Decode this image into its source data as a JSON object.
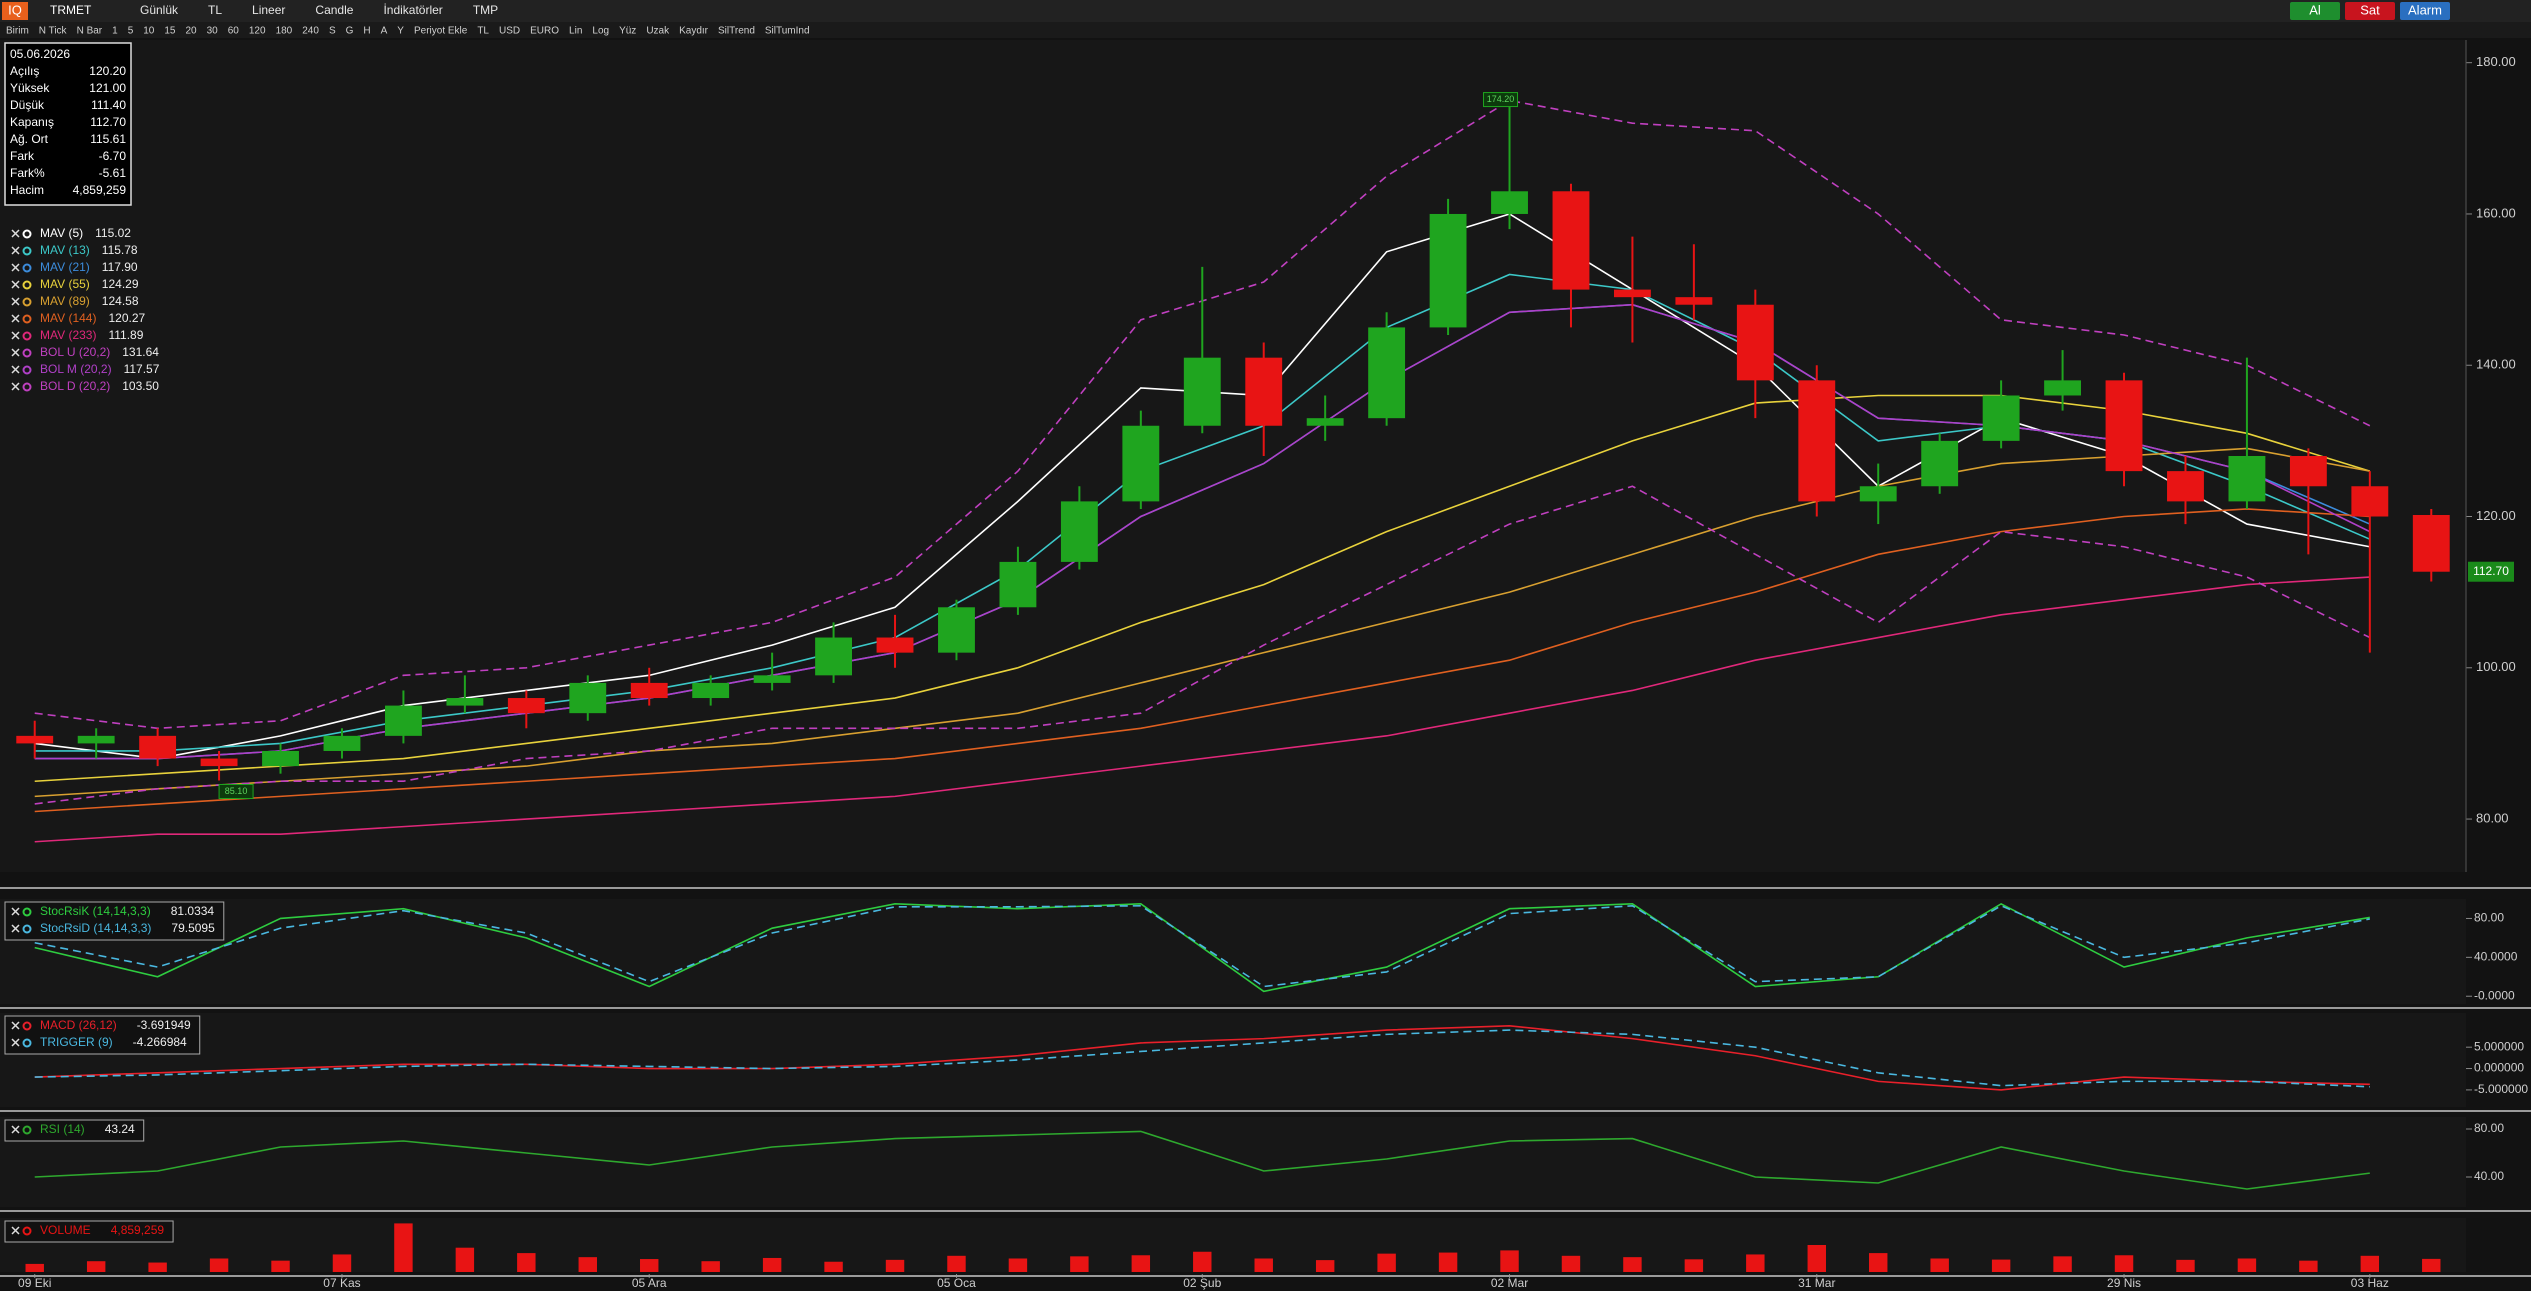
{
  "toolbar": {
    "logo": "IQ",
    "symbol": "TRMET",
    "menu": [
      "Günlük",
      "TL",
      "Lineer",
      "Candle",
      "İndikatörler",
      "TMP"
    ],
    "options": [
      "Birim",
      "N Tick",
      "N Bar",
      "1",
      "5",
      "10",
      "15",
      "20",
      "30",
      "60",
      "120",
      "180",
      "240",
      "S",
      "G",
      "H",
      "A",
      "Y",
      "Periyot Ekle",
      "TL",
      "USD",
      "EURO",
      "Lin",
      "Log",
      "Yüz",
      "Uzak",
      "Kaydır",
      "SilTrend",
      "SilTumInd"
    ],
    "buttons": [
      {
        "label": "Al",
        "color": "#1e8e2e"
      },
      {
        "label": "Sat",
        "color": "#c8141e"
      },
      {
        "label": "Alarm",
        "color": "#2a6fc0"
      }
    ]
  },
  "info": {
    "date": "05.06.2026",
    "rows": [
      [
        "Açılış",
        "120.20"
      ],
      [
        "Yüksek",
        "121.00"
      ],
      [
        "Düşük",
        "111.40"
      ],
      [
        "Kapanış",
        "112.70"
      ],
      [
        "Ağ. Ort",
        "115.61"
      ],
      [
        "Fark",
        "-6.70"
      ],
      [
        "Fark%",
        "-5.61"
      ],
      [
        "Hacim",
        "4,859,259"
      ]
    ]
  },
  "main": {
    "type": "candlestick",
    "ylim": [
      73,
      183
    ],
    "yticks": [
      {
        "value": 80,
        "label": "80.00"
      },
      {
        "value": 100,
        "label": "100.00"
      },
      {
        "value": 120,
        "label": "120.00"
      },
      {
        "value": 140,
        "label": "140.00"
      },
      {
        "value": 160,
        "label": "160.00"
      },
      {
        "value": 180,
        "label": "180.00"
      }
    ],
    "up_color": "#1fa51f",
    "down_color": "#e81414",
    "dates": [
      "09 Eki",
      null,
      null,
      null,
      null,
      "07 Kas",
      null,
      null,
      null,
      null,
      "05 Ara",
      null,
      null,
      null,
      null,
      "05 Oca",
      null,
      null,
      null,
      "02 Şub",
      null,
      null,
      null,
      null,
      "02 Mar",
      null,
      null,
      null,
      null,
      "31 Mar",
      null,
      null,
      null,
      null,
      "29 Nis",
      null,
      null,
      null,
      "03 Haz",
      null
    ],
    "candles": [
      [
        91,
        93,
        88,
        90
      ],
      [
        90,
        92,
        88,
        91
      ],
      [
        91,
        92,
        87,
        88
      ],
      [
        88,
        89,
        85.1,
        87
      ],
      [
        87,
        90,
        86,
        89
      ],
      [
        89,
        92,
        88,
        91
      ],
      [
        91,
        97,
        90,
        95
      ],
      [
        95,
        99,
        94,
        96
      ],
      [
        96,
        97,
        92,
        94
      ],
      [
        94,
        99,
        93,
        98
      ],
      [
        98,
        100,
        95,
        96
      ],
      [
        96,
        99,
        95,
        98
      ],
      [
        98,
        102,
        97,
        99
      ],
      [
        99,
        106,
        98,
        104
      ],
      [
        104,
        107,
        100,
        102
      ],
      [
        102,
        109,
        101,
        108
      ],
      [
        108,
        116,
        107,
        114
      ],
      [
        114,
        124,
        113,
        122
      ],
      [
        122,
        134,
        121,
        132
      ],
      [
        132,
        153,
        131,
        141
      ],
      [
        141,
        143,
        128,
        132
      ],
      [
        132,
        136,
        130,
        133
      ],
      [
        133,
        147,
        132,
        145
      ],
      [
        145,
        162,
        144,
        160
      ],
      [
        160,
        174.2,
        158,
        163
      ],
      [
        163,
        164,
        145,
        150
      ],
      [
        150,
        157,
        143,
        149
      ],
      [
        149,
        156,
        146,
        148
      ],
      [
        148,
        150,
        133,
        138
      ],
      [
        138,
        140,
        120,
        122
      ],
      [
        122,
        127,
        119,
        124
      ],
      [
        124,
        131,
        123,
        130
      ],
      [
        130,
        138,
        129,
        136
      ],
      [
        136,
        142,
        134,
        138
      ],
      [
        138,
        139,
        124,
        126
      ],
      [
        126,
        128,
        119,
        122
      ],
      [
        122,
        141,
        121,
        128
      ],
      [
        128,
        129,
        115,
        124
      ],
      [
        124,
        126,
        102,
        120
      ],
      [
        120.2,
        121,
        111.4,
        112.7
      ]
    ],
    "high_label": "174.20",
    "low_label": "85.10",
    "line_x": [
      0,
      2,
      4,
      6,
      8,
      10,
      12,
      14,
      16,
      18,
      20,
      22,
      24,
      26,
      28,
      30,
      32,
      34,
      36,
      38
    ],
    "lines": [
      {
        "name": "MAV (5)",
        "value": "115.02",
        "color": "#ffffff",
        "dash": false,
        "values": [
          90,
          88,
          91,
          95,
          97,
          99,
          103,
          108,
          122,
          137,
          136,
          155,
          160,
          150,
          140,
          124,
          133,
          128,
          119,
          116
        ]
      },
      {
        "name": "MAV (13)",
        "value": "115.78",
        "color": "#3cc8c8",
        "dash": false,
        "values": [
          89,
          89,
          90,
          93,
          95,
          97,
          100,
          104,
          113,
          126,
          132,
          145,
          152,
          150,
          142,
          130,
          132,
          130,
          124,
          117
        ]
      },
      {
        "name": "MAV (21)",
        "value": "117.90",
        "color": "#3c8cdc",
        "dash": false,
        "values": [
          88,
          88,
          89,
          92,
          94,
          96,
          99,
          102,
          109,
          120,
          127,
          138,
          147,
          148,
          143,
          133,
          132,
          130,
          126,
          119
        ]
      },
      {
        "name": "MAV (55)",
        "value": "124.29",
        "color": "#e8d23c",
        "dash": false,
        "values": [
          85,
          86,
          87,
          88,
          90,
          92,
          94,
          96,
          100,
          106,
          111,
          118,
          124,
          130,
          135,
          136,
          136,
          134,
          131,
          126
        ]
      },
      {
        "name": "MAV (89)",
        "value": "124.58",
        "color": "#d8a030",
        "dash": false,
        "values": [
          83,
          84,
          85,
          86,
          87,
          89,
          90,
          92,
          94,
          98,
          102,
          106,
          110,
          115,
          120,
          124,
          127,
          128,
          129,
          126
        ]
      },
      {
        "name": "MAV (144)",
        "value": "120.27",
        "color": "#e06020",
        "dash": false,
        "values": [
          81,
          82,
          83,
          84,
          85,
          86,
          87,
          88,
          90,
          92,
          95,
          98,
          101,
          106,
          110,
          115,
          118,
          120,
          121,
          120
        ]
      },
      {
        "name": "MAV (233)",
        "value": "111.89",
        "color": "#e0287a",
        "dash": false,
        "values": [
          77,
          78,
          78,
          79,
          80,
          81,
          82,
          83,
          85,
          87,
          89,
          91,
          94,
          97,
          101,
          104,
          107,
          109,
          111,
          112
        ]
      },
      {
        "name": "BOL U (20,2)",
        "value": "131.64",
        "color": "#c040c0",
        "dash": true,
        "values": [
          94,
          92,
          93,
          99,
          100,
          103,
          106,
          112,
          126,
          146,
          151,
          165,
          175,
          172,
          171,
          160,
          146,
          144,
          140,
          132
        ]
      },
      {
        "name": "BOL M (20,2)",
        "value": "117.57",
        "color": "#b040c8",
        "dash": false,
        "values": [
          88,
          88,
          89,
          92,
          94,
          96,
          99,
          102,
          109,
          120,
          127,
          138,
          147,
          148,
          143,
          133,
          132,
          130,
          126,
          118
        ]
      },
      {
        "name": "BOL D (20,2)",
        "value": "103.50",
        "color": "#c040c0",
        "dash": true,
        "values": [
          82,
          84,
          85,
          85,
          88,
          89,
          92,
          92,
          92,
          94,
          103,
          111,
          119,
          124,
          115,
          106,
          118,
          116,
          112,
          104
        ]
      }
    ]
  },
  "panels": [
    {
      "type": "line",
      "ylim": [
        -8,
        100
      ],
      "yticks": [
        {
          "value": 80,
          "label": "80.00"
        },
        {
          "value": 40,
          "label": "40.0000"
        },
        {
          "value": 0,
          "label": "-0.0000"
        }
      ],
      "series": [
        {
          "name": "StocRsiK (14,14,3,3)",
          "value": "81.0334",
          "color": "#2ecc40",
          "dash": false,
          "values": [
            50,
            20,
            80,
            90,
            60,
            10,
            70,
            95,
            90,
            95,
            5,
            30,
            90,
            95,
            10,
            20,
            95,
            30,
            60,
            81
          ]
        },
        {
          "name": "StocRsiD (14,14,3,3)",
          "value": "79.5095",
          "color": "#4ab8e0",
          "dash": true,
          "values": [
            55,
            30,
            70,
            88,
            65,
            15,
            65,
            92,
            92,
            93,
            10,
            25,
            85,
            93,
            15,
            20,
            93,
            40,
            55,
            79.5
          ]
        }
      ]
    },
    {
      "type": "line",
      "ylim": [
        -9,
        13
      ],
      "yticks": [
        {
          "value": 5,
          "label": "5.000000"
        },
        {
          "value": 0,
          "label": "0.000000"
        },
        {
          "value": -5,
          "label": "-5.000000"
        }
      ],
      "series": [
        {
          "name": "MACD (26,12)",
          "value": "-3.691949",
          "color": "#e8202a",
          "dash": false,
          "values": [
            -2,
            -1,
            0,
            1,
            1,
            0,
            0,
            1,
            3,
            6,
            7,
            9,
            10,
            7,
            3,
            -3,
            -5,
            -2,
            -3,
            -3.69
          ]
        },
        {
          "name": "TRIGGER (9)",
          "value": "-4.266984",
          "color": "#4ab8e0",
          "dash": true,
          "values": [
            -2,
            -1.5,
            -0.5,
            0.5,
            1,
            0.5,
            0,
            0.5,
            2,
            4,
            6,
            8,
            9,
            8,
            5,
            -1,
            -4,
            -3,
            -3,
            -4.27
          ]
        }
      ]
    },
    {
      "type": "line",
      "ylim": [
        15,
        90
      ],
      "yticks": [
        {
          "value": 80,
          "label": "80.00"
        },
        {
          "value": 40,
          "label": "40.00"
        }
      ],
      "series": [
        {
          "name": "RSI (14)",
          "value": "43.24",
          "color": "#2ea82e",
          "dash": false,
          "values": [
            40,
            45,
            65,
            70,
            60,
            50,
            65,
            72,
            75,
            78,
            45,
            55,
            70,
            72,
            40,
            35,
            65,
            45,
            30,
            43.24
          ]
        }
      ]
    },
    {
      "type": "bar",
      "ylim": [
        0,
        20000000
      ],
      "yticks": [],
      "series": [
        {
          "name": "VOLUME",
          "value": "4,859,259",
          "color": "#e81414",
          "dash": false,
          "values": [
            3000000,
            4000000,
            3500000,
            5000000,
            4200000,
            6500000,
            18000000,
            9000000,
            7000000,
            5500000,
            4800000,
            4000000,
            5200000,
            3800000,
            4500000,
            6000000,
            5000000,
            5800000,
            6200000,
            7500000,
            5000000,
            4400000,
            6800000,
            7200000,
            8000000,
            6000000,
            5500000,
            4700000,
            6500000,
            10000000,
            7000000,
            5000000,
            4600000,
            5800000,
            6200000,
            4500000,
            5000000,
            4200000,
            6000000,
            4859259
          ]
        }
      ]
    }
  ]
}
